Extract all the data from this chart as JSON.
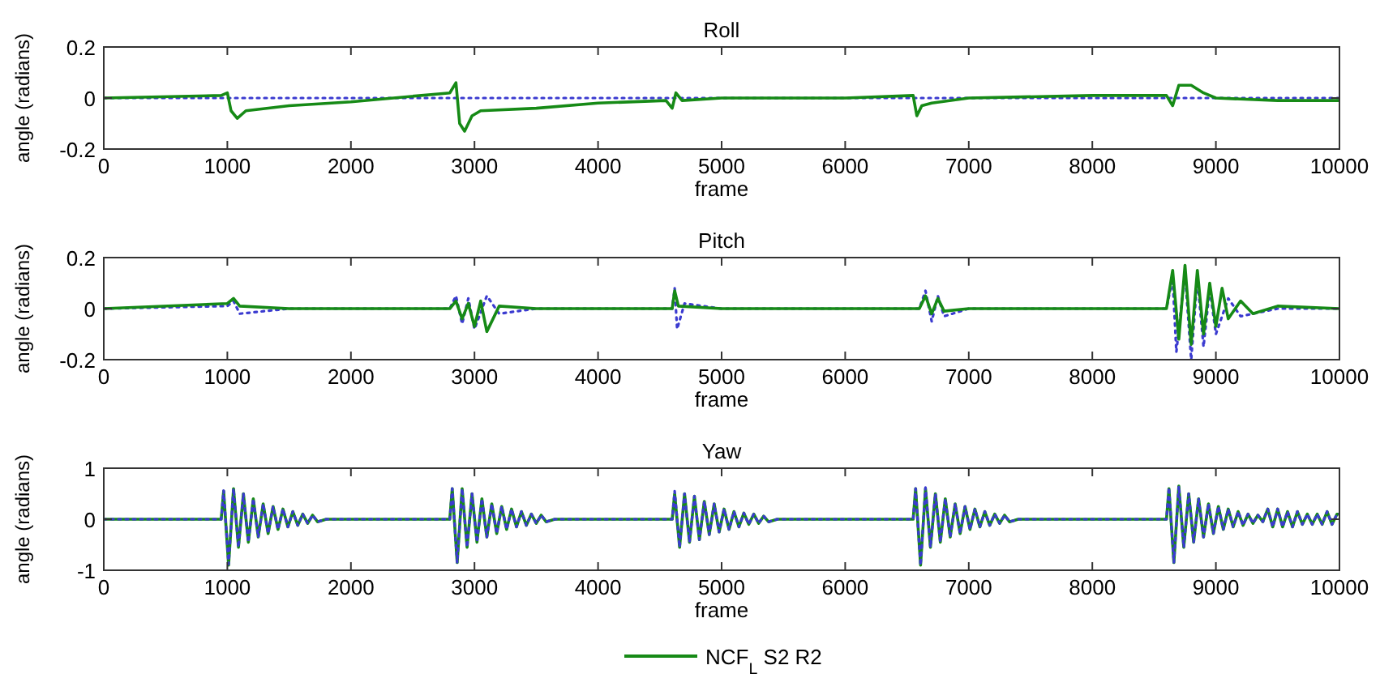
{
  "chart_data": [
    {
      "type": "line",
      "title": "Roll",
      "xlabel": "frame",
      "ylabel": "angle (radians)",
      "xlim": [
        0,
        10000
      ],
      "xticks": [
        0,
        1000,
        2000,
        3000,
        4000,
        5000,
        6000,
        7000,
        8000,
        9000,
        10000
      ],
      "ylim": [
        -0.2,
        0.2
      ],
      "yticks": [
        -0.2,
        0,
        0.2
      ],
      "grid": false,
      "legend": false,
      "series": [
        {
          "color": "#3b3bd0",
          "line_style": "dotted",
          "x": [
            0,
            5000,
            10000
          ],
          "values": [
            0,
            0,
            0
          ]
        },
        {
          "color": "#168a16",
          "line_style": "solid",
          "x": [
            0,
            950,
            1000,
            1030,
            1080,
            1150,
            1500,
            2000,
            2800,
            2850,
            2880,
            2920,
            2980,
            3050,
            3500,
            4000,
            4550,
            4600,
            4630,
            4680,
            5000,
            6000,
            6550,
            6580,
            6620,
            6700,
            7000,
            8000,
            8600,
            8650,
            8700,
            8800,
            8900,
            9000,
            9500,
            10000
          ],
          "values": [
            0,
            0.01,
            0.02,
            -0.05,
            -0.08,
            -0.05,
            -0.03,
            -0.015,
            0.02,
            0.06,
            -0.1,
            -0.13,
            -0.07,
            -0.05,
            -0.04,
            -0.02,
            -0.01,
            -0.04,
            0.02,
            -0.01,
            0,
            0,
            0.01,
            -0.07,
            -0.03,
            -0.02,
            0,
            0.01,
            0.01,
            -0.03,
            0.05,
            0.05,
            0.02,
            0,
            -0.01,
            -0.01
          ]
        }
      ]
    },
    {
      "type": "line",
      "title": "Pitch",
      "xlabel": "frame",
      "ylabel": "angle (radians)",
      "xlim": [
        0,
        10000
      ],
      "xticks": [
        0,
        1000,
        2000,
        3000,
        4000,
        5000,
        6000,
        7000,
        8000,
        9000,
        10000
      ],
      "ylim": [
        -0.2,
        0.2
      ],
      "yticks": [
        -0.2,
        0,
        0.2
      ],
      "grid": false,
      "legend": false,
      "series": [
        {
          "color": "#3b3bd0",
          "line_style": "dotted",
          "x": [
            0,
            1000,
            1050,
            1100,
            1500,
            2800,
            2850,
            2900,
            2950,
            3000,
            3100,
            3200,
            3500,
            4600,
            4620,
            4640,
            4700,
            5000,
            6600,
            6650,
            6700,
            6750,
            6800,
            7000,
            8600,
            8650,
            8680,
            8750,
            8800,
            8850,
            8900,
            8950,
            9000,
            9100,
            9200,
            9500,
            10000
          ],
          "values": [
            0,
            0.01,
            0.03,
            -0.02,
            0,
            0,
            0.05,
            -0.06,
            0.04,
            -0.08,
            0.05,
            -0.02,
            0,
            0,
            0.08,
            -0.08,
            0.02,
            0,
            0,
            0.07,
            -0.05,
            0.05,
            -0.03,
            0,
            0,
            0.12,
            -0.17,
            0.14,
            -0.2,
            0.12,
            -0.15,
            0.08,
            -0.1,
            0.04,
            -0.03,
            0,
            0
          ]
        },
        {
          "color": "#168a16",
          "line_style": "solid",
          "x": [
            0,
            1000,
            1050,
            1100,
            1500,
            2800,
            2850,
            2900,
            2950,
            3000,
            3050,
            3100,
            3200,
            3500,
            4600,
            4620,
            4650,
            5000,
            6600,
            6650,
            6700,
            6750,
            6800,
            7000,
            8600,
            8650,
            8700,
            8750,
            8800,
            8850,
            8900,
            8950,
            9000,
            9050,
            9100,
            9200,
            9300,
            9500,
            10000
          ],
          "values": [
            0,
            0.02,
            0.04,
            0.01,
            0,
            0,
            0.03,
            -0.04,
            0.02,
            -0.07,
            0.03,
            -0.09,
            0.01,
            0,
            0,
            0.07,
            0.01,
            0,
            0,
            0.05,
            -0.02,
            0.04,
            -0.01,
            0,
            0,
            0.15,
            -0.12,
            0.17,
            -0.14,
            0.15,
            -0.1,
            0.1,
            -0.07,
            0.08,
            -0.04,
            0.03,
            -0.02,
            0.01,
            0
          ]
        }
      ]
    },
    {
      "type": "line",
      "title": "Yaw",
      "xlabel": "frame",
      "ylabel": "angle (radians)",
      "xlim": [
        0,
        10000
      ],
      "xticks": [
        0,
        1000,
        2000,
        3000,
        4000,
        5000,
        6000,
        7000,
        8000,
        9000,
        10000
      ],
      "ylim": [
        -1,
        1
      ],
      "yticks": [
        -1,
        0,
        1
      ],
      "grid": false,
      "legend": "bottom",
      "x": [
        0,
        950,
        970,
        1010,
        1050,
        1090,
        1130,
        1170,
        1210,
        1250,
        1290,
        1330,
        1370,
        1410,
        1450,
        1490,
        1530,
        1570,
        1610,
        1650,
        1690,
        1730,
        1800,
        2800,
        2820,
        2860,
        2900,
        2940,
        2980,
        3020,
        3060,
        3100,
        3140,
        3180,
        3220,
        3260,
        3300,
        3340,
        3380,
        3420,
        3460,
        3500,
        3540,
        3580,
        3650,
        4600,
        4620,
        4660,
        4700,
        4740,
        4780,
        4820,
        4860,
        4900,
        4940,
        4980,
        5020,
        5060,
        5100,
        5140,
        5180,
        5220,
        5260,
        5300,
        5340,
        5380,
        5450,
        6550,
        6570,
        6610,
        6650,
        6690,
        6730,
        6770,
        6810,
        6850,
        6890,
        6930,
        6970,
        7010,
        7050,
        7090,
        7130,
        7170,
        7210,
        7250,
        7290,
        7330,
        7400,
        8600,
        8620,
        8660,
        8700,
        8740,
        8780,
        8820,
        8860,
        8900,
        8940,
        8980,
        9020,
        9060,
        9100,
        9140,
        9180,
        9220,
        9260,
        9300,
        9340,
        9380,
        9420,
        9460,
        9500,
        9540,
        9580,
        9620,
        9660,
        9700,
        9740,
        9780,
        9820,
        9860,
        9900,
        9940,
        9980,
        10000
      ],
      "series": [
        {
          "color": "#3b3bd0",
          "line_style": "dotted",
          "values": [
            0,
            0,
            0.56,
            -0.88,
            0.6,
            -0.55,
            0.5,
            -0.45,
            0.4,
            -0.35,
            0.3,
            -0.28,
            0.25,
            -0.2,
            0.2,
            -0.15,
            0.15,
            -0.12,
            0.1,
            -0.08,
            0.08,
            -0.05,
            0,
            0,
            0.6,
            -0.85,
            0.6,
            -0.55,
            0.5,
            -0.45,
            0.4,
            -0.35,
            0.3,
            -0.28,
            0.25,
            -0.2,
            0.2,
            -0.15,
            0.15,
            -0.12,
            0.1,
            -0.08,
            0.08,
            -0.05,
            0,
            0,
            0.55,
            -0.55,
            0.5,
            -0.45,
            0.45,
            -0.4,
            0.35,
            -0.3,
            0.3,
            -0.25,
            0.2,
            -0.2,
            0.15,
            -0.15,
            0.12,
            -0.1,
            0.1,
            -0.08,
            0.06,
            -0.05,
            0,
            0,
            0.6,
            -0.9,
            0.62,
            -0.55,
            0.5,
            -0.45,
            0.4,
            -0.35,
            0.3,
            -0.28,
            0.25,
            -0.2,
            0.2,
            -0.15,
            0.15,
            -0.12,
            0.1,
            -0.08,
            0.08,
            -0.05,
            0,
            0,
            0.62,
            -0.85,
            0.65,
            -0.55,
            0.5,
            -0.45,
            0.4,
            -0.35,
            0.3,
            -0.28,
            0.25,
            -0.2,
            0.2,
            -0.15,
            0.15,
            -0.12,
            0.1,
            -0.08,
            0.08,
            -0.05,
            0.2,
            -0.15,
            0.2,
            -0.15,
            0.15,
            -0.15,
            0.15,
            -0.1,
            0.1,
            -0.1,
            0.1,
            -0.1,
            0.15,
            -0.1,
            0.1,
            0.1
          ]
        },
        {
          "name": "NCF$_{L}$ S2 R2",
          "color": "#168a16",
          "line_style": "solid",
          "values": [
            0,
            0,
            0.55,
            -0.9,
            0.6,
            -0.55,
            0.5,
            -0.45,
            0.4,
            -0.35,
            0.3,
            -0.28,
            0.25,
            -0.2,
            0.2,
            -0.15,
            0.15,
            -0.12,
            0.1,
            -0.08,
            0.08,
            -0.05,
            0,
            0,
            0.6,
            -0.85,
            0.6,
            -0.55,
            0.5,
            -0.45,
            0.4,
            -0.35,
            0.3,
            -0.28,
            0.25,
            -0.2,
            0.2,
            -0.15,
            0.15,
            -0.12,
            0.1,
            -0.08,
            0.08,
            -0.05,
            0,
            0,
            0.5,
            -0.55,
            0.5,
            -0.45,
            0.45,
            -0.4,
            0.35,
            -0.3,
            0.3,
            -0.25,
            0.2,
            -0.2,
            0.15,
            -0.15,
            0.12,
            -0.1,
            0.1,
            -0.08,
            0.06,
            -0.05,
            0,
            0,
            0.6,
            -0.9,
            0.6,
            -0.55,
            0.5,
            -0.45,
            0.4,
            -0.35,
            0.3,
            -0.28,
            0.25,
            -0.2,
            0.2,
            -0.15,
            0.15,
            -0.12,
            0.1,
            -0.08,
            0.08,
            -0.05,
            0,
            0,
            0.6,
            -0.85,
            0.65,
            -0.55,
            0.5,
            -0.45,
            0.4,
            -0.35,
            0.3,
            -0.28,
            0.25,
            -0.2,
            0.2,
            -0.15,
            0.15,
            -0.12,
            0.1,
            -0.08,
            0.08,
            -0.05,
            0.2,
            -0.15,
            0.2,
            -0.15,
            0.15,
            -0.15,
            0.15,
            -0.1,
            0.1,
            -0.1,
            0.1,
            -0.1,
            0.15,
            -0.1,
            0.1,
            0.1
          ]
        }
      ]
    }
  ]
}
